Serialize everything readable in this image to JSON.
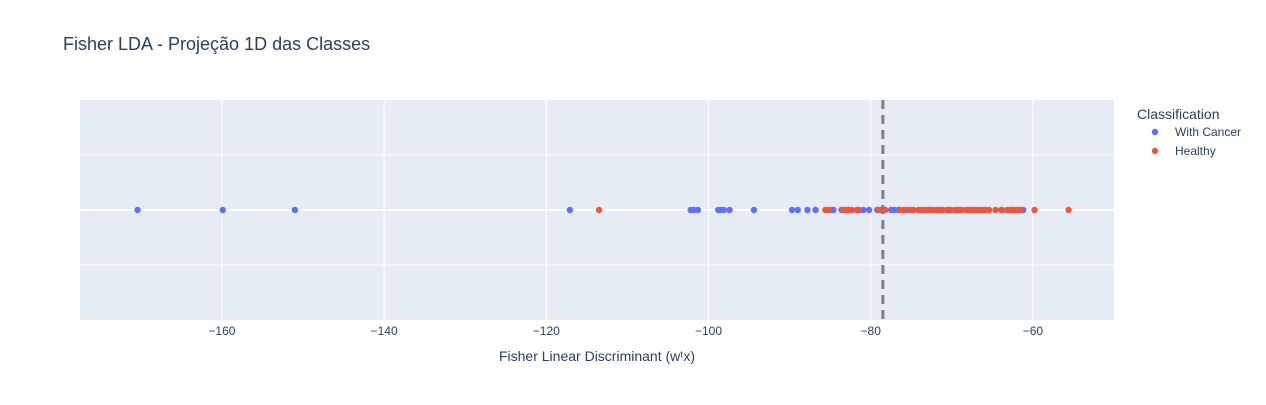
{
  "chart_data": {
    "type": "scatter",
    "title": "Fisher LDA - Projeção 1D das Classes",
    "xlabel": "Fisher Linear Discriminant (wᵗx)",
    "ylabel": "",
    "xlim": [
      -177.5,
      -50
    ],
    "xticks": [
      -160,
      -140,
      -120,
      -100,
      -80,
      -60
    ],
    "xtick_labels": [
      "−160",
      "−140",
      "−120",
      "−100",
      "−80",
      "−60"
    ],
    "threshold": -78.5,
    "grid": true,
    "legend": {
      "title": "Classification",
      "placement": "top-right"
    },
    "series": [
      {
        "name": "With Cancer",
        "color": "#636efa",
        "x": [
          -170.4,
          -159.9,
          -151.0,
          -117.1,
          -102.2,
          -101.8,
          -101.3,
          -98.8,
          -98.5,
          -98.1,
          -97.4,
          -94.4,
          -89.7,
          -89.0,
          -87.8,
          -86.8,
          -85.0,
          -84.6,
          -83.6,
          -82.8,
          -81.7,
          -81.4,
          -80.9,
          -80.2,
          -79.2,
          -78.8,
          -77.5,
          -77.1,
          -76.6,
          -75.7,
          -74.9,
          -73.8,
          -72.6,
          -71.4,
          -70.2,
          -69.1,
          -67.9,
          -66.8,
          -65.8,
          -63.8,
          -62.6,
          -61.2
        ]
      },
      {
        "name": "Healthy",
        "color": "#ef553b",
        "x": [
          -113.5,
          -85.6,
          -85.2,
          -83.4,
          -83.0,
          -82.7,
          -82.3,
          -81.6,
          -79.0,
          -78.2,
          -76.4,
          -75.9,
          -75.3,
          -74.7,
          -74.1,
          -73.6,
          -73.2,
          -72.9,
          -72.6,
          -72.2,
          -71.8,
          -71.5,
          -71.1,
          -70.6,
          -70.2,
          -69.7,
          -69.4,
          -68.8,
          -68.3,
          -67.9,
          -67.5,
          -67.2,
          -66.9,
          -66.5,
          -66.1,
          -65.8,
          -65.4,
          -64.6,
          -63.9,
          -63.2,
          -62.8,
          -62.4,
          -62.1,
          -61.8,
          -61.6,
          -59.8,
          -55.6
        ]
      }
    ]
  }
}
